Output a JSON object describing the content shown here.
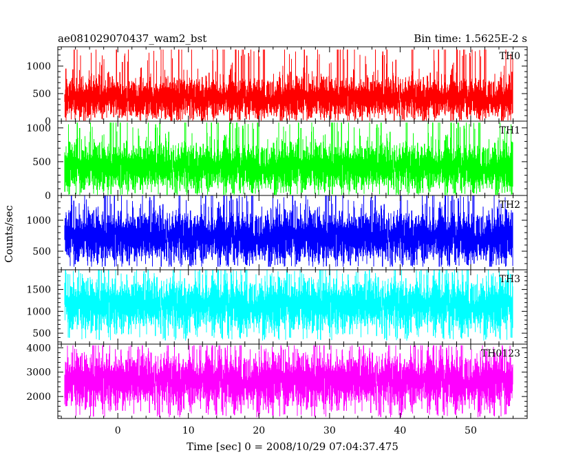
{
  "chart_data": {
    "type": "line",
    "title": "ae081029070437_wam2_bst",
    "subtitle": "Bin time: 1.5625E-2 s",
    "xlabel": "Time [sec] 0 = 2008/10/29 07:04:37.475",
    "ylabel": "Counts/sec",
    "xlim": [
      -8.5,
      58
    ],
    "x_ticks": [
      "0",
      "10",
      "20",
      "30",
      "40",
      "50"
    ],
    "x_data_range": [
      -7.5,
      56
    ],
    "bin_time": 0.015625,
    "panels": [
      {
        "name": "TH0",
        "color": "#ff0000",
        "ylim": [
          0,
          1350
        ],
        "y_ticks": [
          "0",
          "500",
          "1000"
        ],
        "mean": 420,
        "sigma": 170,
        "max": 1300,
        "min": 10
      },
      {
        "name": "TH1",
        "color": "#00ff00",
        "ylim": [
          0,
          1100
        ],
        "y_ticks": [
          "0",
          "500",
          "1000"
        ],
        "mean": 420,
        "sigma": 160,
        "max": 1080,
        "min": 10
      },
      {
        "name": "TH2",
        "color": "#0000ff",
        "ylim": [
          200,
          1400
        ],
        "y_ticks": [
          "500",
          "1000"
        ],
        "mean": 730,
        "sigma": 190,
        "max": 1400,
        "min": 250
      },
      {
        "name": "TH3",
        "color": "#00ffff",
        "ylim": [
          250,
          1950
        ],
        "y_ticks": [
          "500",
          "1000",
          "1500"
        ],
        "mean": 1150,
        "sigma": 270,
        "max": 1950,
        "min": 330
      },
      {
        "name": "TH0123",
        "color": "#ff00ff",
        "ylim": [
          1100,
          4150
        ],
        "y_ticks": [
          "2000",
          "3000",
          "4000"
        ],
        "mean": 2650,
        "sigma": 500,
        "max": 4100,
        "min": 1150
      }
    ]
  }
}
